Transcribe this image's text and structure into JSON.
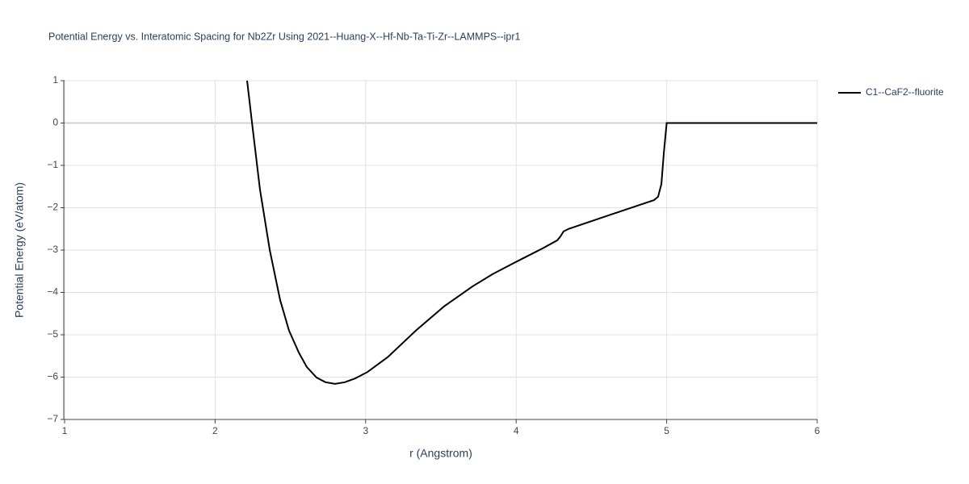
{
  "chart_data": {
    "type": "line",
    "title": "Potential Energy vs. Interatomic Spacing for Nb2Zr Using 2021--Huang-X--Hf-Nb-Ta-Ti-Zr--LAMMPS--ipr1",
    "x_label": "r (Angstrom)",
    "y_label": "Potential Energy (eV/atom)",
    "x": [
      2.2125,
      2.25,
      2.298,
      2.363,
      2.432,
      2.491,
      2.556,
      2.609,
      2.674,
      2.733,
      2.797,
      2.862,
      2.931,
      3.012,
      3.146,
      3.334,
      3.521,
      3.709,
      3.843,
      4.004,
      4.165,
      4.273,
      4.294,
      4.315,
      4.348,
      4.648,
      4.916,
      4.943,
      4.965,
      4.981,
      5.0,
      6.0
    ],
    "series": [
      {
        "name": "C1--CaF2--fluorite",
        "color": "#000000",
        "values": [
          1,
          -0.14,
          -1.57,
          -3.0,
          -4.18,
          -4.9,
          -5.42,
          -5.76,
          -6.01,
          -6.12,
          -6.16,
          -6.12,
          -6.03,
          -5.88,
          -5.53,
          -4.9,
          -4.33,
          -3.86,
          -3.57,
          -3.27,
          -2.98,
          -2.77,
          -2.68,
          -2.56,
          -2.5,
          -2.14,
          -1.82,
          -1.74,
          -1.44,
          -0.71,
          0,
          0
        ]
      }
    ],
    "xlim": [
      1,
      6
    ],
    "xticks": [
      1,
      2,
      3,
      4,
      5,
      6
    ],
    "ylim": [
      -7,
      1
    ],
    "yticks": [
      {
        "value": -7,
        "label": "−7"
      },
      {
        "value": -6,
        "label": "−6"
      },
      {
        "value": -5,
        "label": "−5"
      },
      {
        "value": -4,
        "label": "−4"
      },
      {
        "value": -3,
        "label": "−3"
      },
      {
        "value": -2,
        "label": "−2"
      },
      {
        "value": -1,
        "label": "−1"
      },
      0,
      1
    ],
    "grid": true,
    "legend": "right"
  }
}
